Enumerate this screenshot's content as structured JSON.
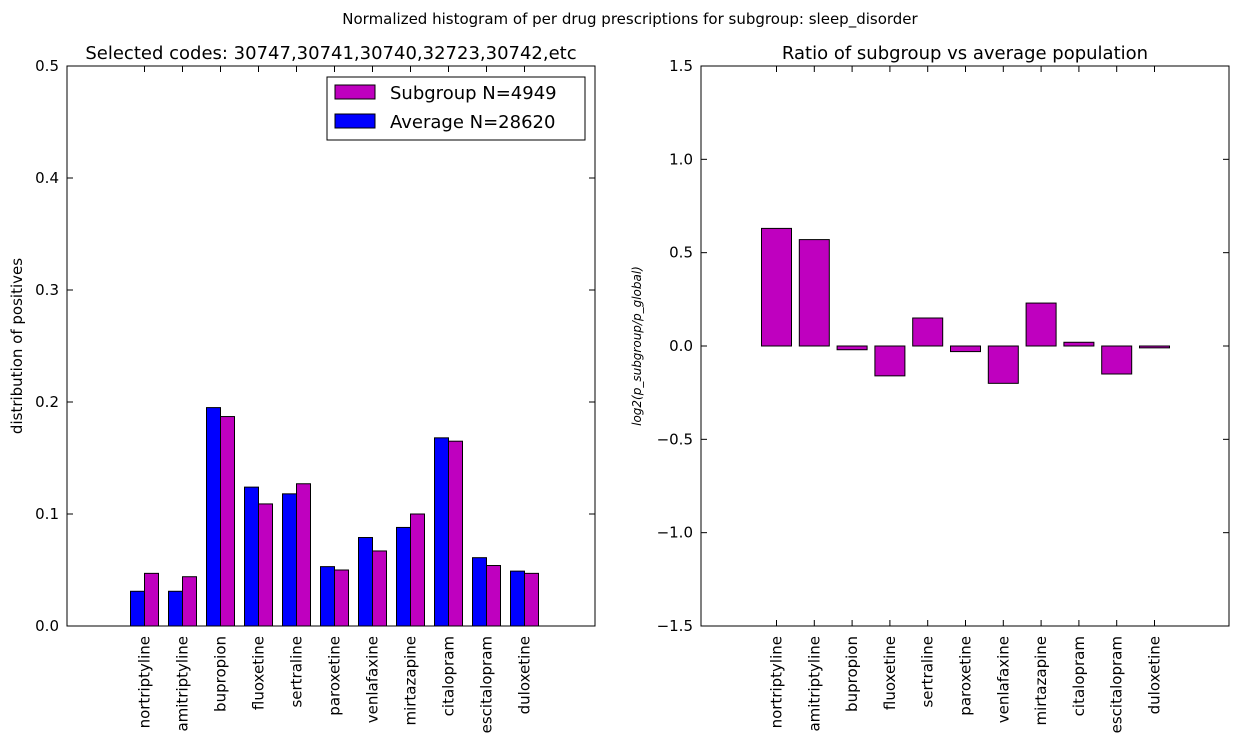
{
  "suptitle": "Normalized histogram of per drug prescriptions for subgroup: sleep_disorder",
  "chart_data": [
    {
      "type": "bar",
      "title": "Selected codes: 30747,30741,30740,32723,30742,etc",
      "xlabel": "",
      "ylabel": "distribution of positives",
      "ylim": [
        0,
        0.5
      ],
      "yticks": [
        "0.0",
        "0.1",
        "0.2",
        "0.3",
        "0.4",
        "0.5"
      ],
      "legend_position": "top-right",
      "categories": [
        "nortriptyline",
        "amitriptyline",
        "bupropion",
        "fluoxetine",
        "sertraline",
        "paroxetine",
        "venlafaxine",
        "mirtazapine",
        "citalopram",
        "escitalopram",
        "duloxetine"
      ],
      "series": [
        {
          "name": "Subgroup N=4949",
          "color": "#bf00bf",
          "values": [
            0.047,
            0.044,
            0.187,
            0.109,
            0.127,
            0.05,
            0.067,
            0.1,
            0.165,
            0.054,
            0.047
          ]
        },
        {
          "name": "Average N=28620",
          "color": "#0000ff",
          "values": [
            0.031,
            0.031,
            0.195,
            0.124,
            0.118,
            0.053,
            0.079,
            0.088,
            0.168,
            0.061,
            0.049
          ]
        }
      ]
    },
    {
      "type": "bar",
      "title": "Ratio of subgroup vs average population",
      "xlabel": "",
      "ylabel": "log2(p_subgroup/p_global)",
      "ylim": [
        -1.5,
        1.5
      ],
      "yticks": [
        "−1.5",
        "−1.0",
        "−0.5",
        "0.0",
        "0.5",
        "1.0",
        "1.5"
      ],
      "categories": [
        "nortriptyline",
        "amitriptyline",
        "bupropion",
        "fluoxetine",
        "sertraline",
        "paroxetine",
        "venlafaxine",
        "mirtazapine",
        "citalopram",
        "escitalopram",
        "duloxetine"
      ],
      "color": "#bf00bf",
      "values": [
        0.63,
        0.57,
        -0.02,
        -0.16,
        0.15,
        -0.03,
        -0.2,
        0.23,
        0.02,
        -0.15,
        -0.01
      ]
    }
  ]
}
